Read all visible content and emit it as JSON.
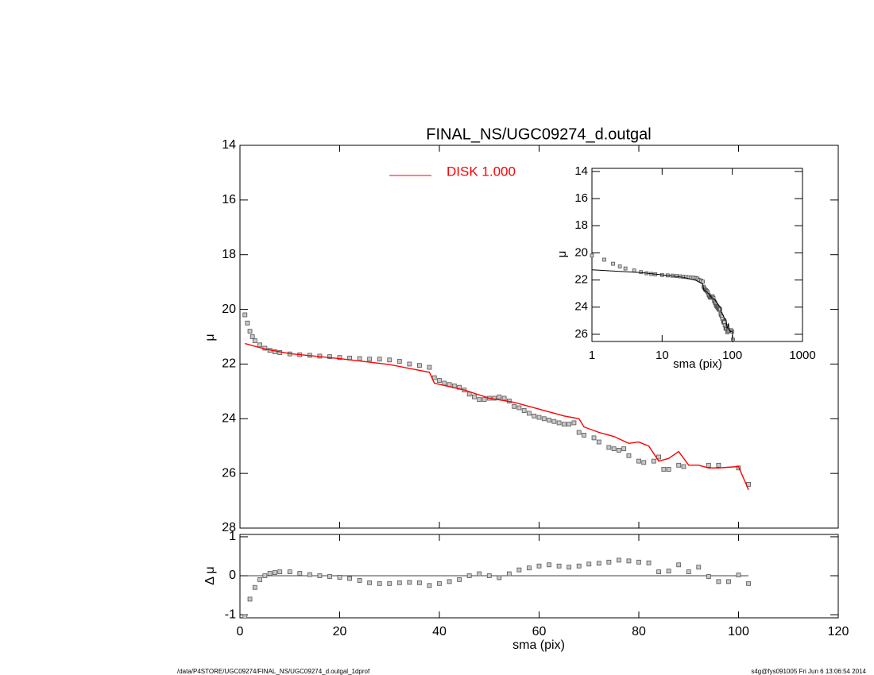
{
  "chart_data": [
    {
      "type": "scatter",
      "title": "FINAL_NS/UGC09274_d.outgal",
      "ylabel": "μ",
      "xlim": [
        0,
        120
      ],
      "xticks": [
        0,
        20,
        40,
        60,
        80,
        100,
        120
      ],
      "ylim": [
        28,
        14
      ],
      "yticks": [
        14,
        16,
        18,
        20,
        22,
        24,
        26,
        28
      ],
      "series": [
        {
          "color": "#808080",
          "marker": "square",
          "x": [
            1,
            1.5,
            2,
            2.5,
            3,
            4,
            5,
            6,
            7,
            8,
            10,
            12,
            14,
            16,
            18,
            20,
            22,
            24,
            26,
            28,
            30,
            32,
            34,
            36,
            38,
            39,
            40,
            41,
            42,
            43,
            44,
            45,
            46,
            47,
            48,
            49,
            50,
            51,
            52,
            53,
            54,
            55,
            56,
            57,
            58,
            59,
            60,
            61,
            62,
            63,
            64,
            65,
            66,
            67,
            68,
            69,
            71,
            72,
            74,
            75,
            76,
            77,
            78,
            80,
            81,
            83,
            84,
            85,
            86,
            88,
            89,
            94,
            96,
            100,
            102
          ],
          "values": [
            20.2,
            20.5,
            20.8,
            21.0,
            21.15,
            21.3,
            21.42,
            21.5,
            21.55,
            21.58,
            21.63,
            21.66,
            21.68,
            21.71,
            21.73,
            21.76,
            21.78,
            21.8,
            21.82,
            21.82,
            21.85,
            21.9,
            22.0,
            22.05,
            22.12,
            22.5,
            22.6,
            22.7,
            22.75,
            22.8,
            22.85,
            22.95,
            23.1,
            23.2,
            23.3,
            23.3,
            23.25,
            23.25,
            23.2,
            23.25,
            23.35,
            23.55,
            23.6,
            23.7,
            23.8,
            23.9,
            23.95,
            24.0,
            24.05,
            24.1,
            24.15,
            24.2,
            24.2,
            24.15,
            24.5,
            24.6,
            24.7,
            24.85,
            25.05,
            25.1,
            25.15,
            25.1,
            25.35,
            25.55,
            25.6,
            25.55,
            25.4,
            25.85,
            25.85,
            25.7,
            25.75,
            25.7,
            25.7,
            25.8,
            26.4
          ]
        },
        {
          "name": "DISK  1.000",
          "color": "#ff0000",
          "marker": "line",
          "x": [
            1,
            5,
            10,
            20,
            30,
            38,
            39,
            45,
            50,
            55,
            60,
            65,
            68,
            69,
            72,
            75,
            78,
            80,
            82,
            84,
            86,
            88,
            90,
            92,
            94,
            96,
            100,
            102
          ],
          "values": [
            21.25,
            21.45,
            21.62,
            21.8,
            22.02,
            22.3,
            22.7,
            22.95,
            23.25,
            23.4,
            23.65,
            23.9,
            24.0,
            24.3,
            24.5,
            24.65,
            24.9,
            24.85,
            25.0,
            25.55,
            25.45,
            25.2,
            25.7,
            25.7,
            25.8,
            25.8,
            25.75,
            26.6
          ]
        }
      ]
    },
    {
      "type": "scatter",
      "ylabel": "Δ μ",
      "xlabel": "sma (pix)",
      "xlim": [
        0,
        120
      ],
      "xticks": [
        0,
        20,
        40,
        60,
        80,
        100,
        120
      ],
      "ylim": [
        -1.08,
        1.06
      ],
      "yticks": [
        -1,
        0,
        1
      ],
      "series": [
        {
          "color": "#808080",
          "marker": "square",
          "x": [
            1,
            2,
            3,
            4,
            5,
            6,
            7,
            8,
            10,
            12,
            14,
            16,
            18,
            20,
            22,
            24,
            26,
            28,
            30,
            32,
            34,
            36,
            38,
            40,
            42,
            44,
            46,
            48,
            50,
            52,
            54,
            56,
            58,
            60,
            62,
            64,
            66,
            68,
            70,
            72,
            74,
            76,
            78,
            80,
            82,
            84,
            86,
            88,
            90,
            92,
            94,
            96,
            98,
            100,
            102
          ],
          "values": [
            -1.05,
            -0.6,
            -0.3,
            -0.1,
            0.0,
            0.06,
            0.08,
            0.1,
            0.1,
            0.06,
            0.03,
            0.0,
            -0.02,
            -0.04,
            -0.07,
            -0.12,
            -0.18,
            -0.2,
            -0.2,
            -0.18,
            -0.17,
            -0.18,
            -0.25,
            -0.2,
            -0.15,
            -0.1,
            0.0,
            0.05,
            0.0,
            -0.05,
            0.05,
            0.15,
            0.2,
            0.25,
            0.28,
            0.25,
            0.22,
            0.25,
            0.3,
            0.32,
            0.35,
            0.4,
            0.38,
            0.35,
            0.33,
            0.1,
            0.12,
            0.28,
            0.1,
            0.22,
            -0.02,
            -0.15,
            -0.15,
            0.02,
            -0.2
          ]
        }
      ]
    },
    {
      "type": "scatter",
      "xscale": "log",
      "xlabel": "sma (pix)",
      "ylabel": "μ",
      "xlim": [
        1,
        1000
      ],
      "xticks": [
        1,
        10,
        100,
        1000
      ],
      "ylim": [
        26.53,
        13.77
      ],
      "yticks": [
        14,
        16,
        18,
        20,
        22,
        24,
        26
      ]
    }
  ],
  "footer": {
    "left": "/data/P4STORE/UGC09274/FINAL_NS/UGC09274_d.outgal_1dprof",
    "right": "s4g@fys091005  Fri Jun  6 13:06:54 2014"
  }
}
